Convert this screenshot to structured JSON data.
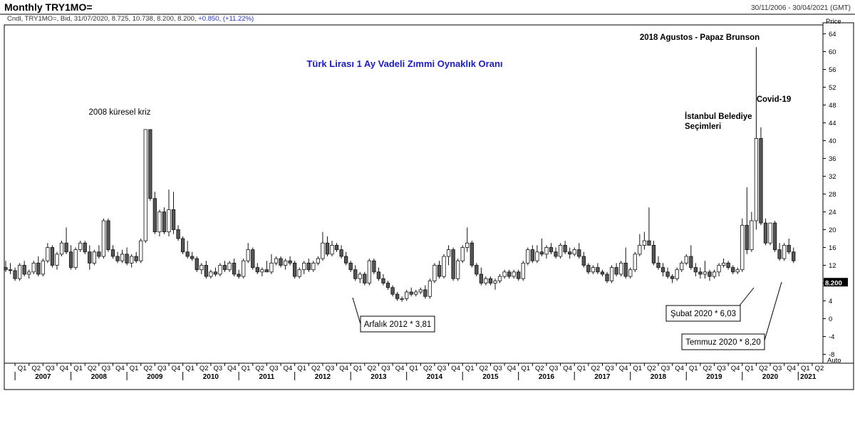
{
  "header": {
    "title": "Monthly TRY1MO=",
    "date_range": "30/11/2006 - 30/04/2021 (GMT)",
    "info_prefix": "Cndl, TRY1MO=, Bid, 31/07/2020, 8.725, 10.738, 8.200, 8.200,",
    "info_change": "+0.850, (+11.22%)"
  },
  "chart_data": {
    "type": "candlestick",
    "title": "Türk Lirası 1 Ay Vadeli Zımmi Oynaklık Oranı",
    "ylabel": "Price",
    "ylim": [
      -10,
      66
    ],
    "y_ticks": [
      64,
      60,
      56,
      52,
      48,
      44,
      40,
      36,
      32,
      28,
      24,
      20,
      16,
      12,
      8,
      4,
      0,
      -4,
      -8
    ],
    "last_price_label": "8.200",
    "auto_label": "Auto",
    "x_range": [
      "2006-11",
      "2021-06"
    ],
    "years": [
      "2007",
      "2008",
      "2009",
      "2010",
      "2011",
      "2012",
      "2013",
      "2014",
      "2015",
      "2016",
      "2017",
      "2018",
      "2019",
      "2020",
      "2021"
    ],
    "quarter_labels": [
      "Q1",
      "Q2",
      "Q3",
      "Q4"
    ],
    "extra_quarters": [
      "Q1",
      "Q2"
    ],
    "candles": [
      [
        "2006-11",
        11.5,
        13.0,
        10.5,
        11.0
      ],
      [
        "2006-12",
        11.0,
        12.5,
        10.0,
        10.8
      ],
      [
        "2007-01",
        10.8,
        11.5,
        8.5,
        9.0
      ],
      [
        "2007-02",
        9.0,
        12.5,
        8.5,
        12.0
      ],
      [
        "2007-03",
        12.0,
        13.0,
        9.5,
        10.0
      ],
      [
        "2007-04",
        10.0,
        11.0,
        9.0,
        10.5
      ],
      [
        "2007-05",
        10.5,
        13.0,
        10.0,
        12.5
      ],
      [
        "2007-06",
        12.5,
        14.0,
        9.5,
        10.0
      ],
      [
        "2007-07",
        10.0,
        13.5,
        9.5,
        13.0
      ],
      [
        "2007-08",
        13.0,
        17.0,
        12.5,
        16.0
      ],
      [
        "2007-09",
        16.0,
        16.5,
        11.5,
        12.0
      ],
      [
        "2007-10",
        12.0,
        15.0,
        11.0,
        14.5
      ],
      [
        "2007-11",
        14.5,
        17.5,
        14.0,
        17.0
      ],
      [
        "2007-12",
        17.0,
        20.5,
        14.5,
        15.0
      ],
      [
        "2008-01",
        15.0,
        16.5,
        11.0,
        11.5
      ],
      [
        "2008-02",
        11.5,
        16.0,
        11.0,
        15.5
      ],
      [
        "2008-03",
        15.5,
        17.5,
        15.0,
        17.0
      ],
      [
        "2008-04",
        17.0,
        17.5,
        14.5,
        15.0
      ],
      [
        "2008-05",
        15.0,
        16.5,
        11.0,
        12.5
      ],
      [
        "2008-06",
        12.5,
        15.5,
        12.0,
        15.0
      ],
      [
        "2008-07",
        15.0,
        16.5,
        13.5,
        14.0
      ],
      [
        "2008-08",
        14.0,
        22.5,
        13.5,
        22.0
      ],
      [
        "2008-09",
        22.0,
        22.5,
        15.0,
        15.5
      ],
      [
        "2008-10",
        15.5,
        16.5,
        13.5,
        14.0
      ],
      [
        "2008-11",
        14.0,
        15.0,
        12.5,
        13.0
      ],
      [
        "2008-12",
        13.0,
        15.5,
        12.5,
        14.5
      ],
      [
        "2009-01",
        14.5,
        16.0,
        12.0,
        12.5
      ],
      [
        "2009-02",
        12.5,
        14.5,
        11.5,
        14.0
      ],
      [
        "2009-03",
        14.0,
        15.0,
        12.5,
        13.0
      ],
      [
        "2009-04",
        13.0,
        18.0,
        12.5,
        17.5
      ],
      [
        "2009-05",
        17.5,
        42.5,
        17.0,
        42.5
      ],
      [
        "2009-06",
        42.5,
        42.5,
        26.5,
        27.0
      ],
      [
        "2009-07",
        27.0,
        28.5,
        19.0,
        19.5
      ],
      [
        "2009-08",
        19.5,
        24.5,
        18.5,
        24.0
      ],
      [
        "2009-09",
        24.0,
        25.0,
        19.0,
        19.5
      ],
      [
        "2009-10",
        19.5,
        29.0,
        18.5,
        24.5
      ],
      [
        "2009-11",
        24.5,
        28.5,
        19.0,
        20.0
      ],
      [
        "2009-12",
        20.0,
        21.0,
        17.5,
        18.0
      ],
      [
        "2010-01",
        18.0,
        18.5,
        14.5,
        15.0
      ],
      [
        "2010-02",
        15.0,
        17.5,
        13.5,
        14.0
      ],
      [
        "2010-03",
        14.0,
        15.0,
        13.0,
        13.5
      ],
      [
        "2010-04",
        13.5,
        14.0,
        10.5,
        11.0
      ],
      [
        "2010-05",
        11.0,
        12.5,
        10.0,
        12.0
      ],
      [
        "2010-06",
        12.0,
        13.0,
        9.0,
        9.5
      ],
      [
        "2010-07",
        9.5,
        11.0,
        9.0,
        10.5
      ],
      [
        "2010-08",
        10.5,
        11.5,
        9.5,
        10.0
      ],
      [
        "2010-09",
        10.0,
        12.5,
        9.5,
        12.0
      ],
      [
        "2010-10",
        12.0,
        13.0,
        10.5,
        11.0
      ],
      [
        "2010-11",
        11.0,
        13.0,
        10.5,
        12.5
      ],
      [
        "2010-12",
        12.5,
        13.5,
        9.5,
        10.0
      ],
      [
        "2011-01",
        10.0,
        11.0,
        9.0,
        9.5
      ],
      [
        "2011-02",
        9.5,
        13.5,
        9.0,
        13.0
      ],
      [
        "2011-03",
        13.0,
        17.0,
        12.5,
        15.5
      ],
      [
        "2011-04",
        15.5,
        16.0,
        11.0,
        11.5
      ],
      [
        "2011-05",
        11.5,
        12.5,
        10.0,
        10.5
      ],
      [
        "2011-06",
        10.5,
        11.5,
        9.5,
        11.0
      ],
      [
        "2011-07",
        11.0,
        13.0,
        10.5,
        10.5
      ],
      [
        "2011-08",
        10.5,
        14.5,
        10.0,
        12.5
      ],
      [
        "2011-09",
        12.5,
        14.0,
        12.0,
        13.5
      ],
      [
        "2011-10",
        13.5,
        14.0,
        11.5,
        12.0
      ],
      [
        "2011-11",
        12.0,
        13.5,
        11.0,
        13.0
      ],
      [
        "2011-12",
        13.0,
        14.0,
        12.0,
        12.5
      ],
      [
        "2012-01",
        12.5,
        13.0,
        9.0,
        9.5
      ],
      [
        "2012-02",
        9.5,
        11.5,
        9.0,
        11.0
      ],
      [
        "2012-03",
        11.0,
        13.0,
        10.0,
        12.5
      ],
      [
        "2012-04",
        12.5,
        13.5,
        10.5,
        11.0
      ],
      [
        "2012-05",
        11.0,
        13.0,
        10.5,
        12.5
      ],
      [
        "2012-06",
        12.5,
        14.0,
        12.0,
        13.5
      ],
      [
        "2012-07",
        13.5,
        19.5,
        13.0,
        17.0
      ],
      [
        "2012-08",
        17.0,
        18.5,
        14.0,
        14.5
      ],
      [
        "2012-09",
        14.5,
        17.5,
        14.0,
        16.5
      ],
      [
        "2012-10",
        16.5,
        17.0,
        15.0,
        15.5
      ],
      [
        "2012-11",
        15.5,
        16.5,
        13.5,
        14.0
      ],
      [
        "2012-12",
        14.0,
        15.0,
        12.0,
        12.5
      ],
      [
        "2013-01",
        12.5,
        13.0,
        10.5,
        11.0
      ],
      [
        "2013-02",
        11.0,
        12.0,
        8.5,
        9.0
      ],
      [
        "2013-03",
        9.0,
        10.5,
        8.0,
        10.0
      ],
      [
        "2013-04",
        10.0,
        10.5,
        7.5,
        8.0
      ],
      [
        "2013-05",
        8.0,
        13.5,
        7.5,
        13.0
      ],
      [
        "2013-06",
        13.0,
        13.5,
        10.0,
        10.5
      ],
      [
        "2013-07",
        10.5,
        11.5,
        8.5,
        9.0
      ],
      [
        "2013-08",
        9.0,
        10.0,
        7.5,
        8.0
      ],
      [
        "2013-09",
        8.0,
        8.5,
        6.5,
        7.0
      ],
      [
        "2013-10",
        7.0,
        7.5,
        5.0,
        5.5
      ],
      [
        "2013-11",
        5.5,
        6.0,
        4.0,
        4.5
      ],
      [
        "2013-12",
        4.5,
        5.0,
        3.8,
        4.5
      ],
      [
        "2014-01",
        4.5,
        6.5,
        4.0,
        6.0
      ],
      [
        "2014-02",
        6.0,
        7.0,
        5.0,
        5.5
      ],
      [
        "2014-03",
        5.5,
        6.5,
        5.0,
        6.0
      ],
      [
        "2014-04",
        6.0,
        7.0,
        5.5,
        6.5
      ],
      [
        "2014-05",
        6.5,
        7.5,
        4.5,
        5.0
      ],
      [
        "2014-06",
        5.0,
        9.0,
        4.5,
        8.5
      ],
      [
        "2014-07",
        8.5,
        12.5,
        8.0,
        12.0
      ],
      [
        "2014-08",
        12.0,
        13.0,
        9.0,
        9.5
      ],
      [
        "2014-09",
        9.5,
        14.5,
        9.0,
        14.0
      ],
      [
        "2014-10",
        14.0,
        16.5,
        12.0,
        15.5
      ],
      [
        "2014-11",
        15.5,
        16.0,
        8.5,
        9.0
      ],
      [
        "2014-12",
        9.0,
        13.5,
        8.5,
        13.0
      ],
      [
        "2015-01",
        13.0,
        16.5,
        12.5,
        16.0
      ],
      [
        "2015-02",
        16.0,
        20.5,
        15.0,
        17.0
      ],
      [
        "2015-03",
        17.0,
        17.5,
        11.5,
        12.0
      ],
      [
        "2015-04",
        12.0,
        12.5,
        9.5,
        10.0
      ],
      [
        "2015-05",
        10.0,
        11.5,
        7.5,
        8.0
      ],
      [
        "2015-06",
        8.0,
        9.5,
        7.5,
        9.0
      ],
      [
        "2015-07",
        9.0,
        9.5,
        7.5,
        8.0
      ],
      [
        "2015-08",
        8.0,
        9.0,
        6.5,
        8.5
      ],
      [
        "2015-09",
        8.5,
        10.0,
        8.0,
        9.5
      ],
      [
        "2015-10",
        9.5,
        11.0,
        9.0,
        10.5
      ],
      [
        "2015-11",
        10.5,
        11.0,
        9.0,
        9.5
      ],
      [
        "2015-12",
        9.5,
        11.0,
        9.0,
        10.5
      ],
      [
        "2016-01",
        10.5,
        11.0,
        8.5,
        9.0
      ],
      [
        "2016-02",
        9.0,
        13.0,
        8.5,
        12.5
      ],
      [
        "2016-03",
        12.5,
        16.0,
        12.0,
        15.5
      ],
      [
        "2016-04",
        15.5,
        16.5,
        12.5,
        13.0
      ],
      [
        "2016-05",
        13.0,
        16.5,
        12.5,
        15.0
      ],
      [
        "2016-06",
        15.0,
        18.0,
        14.0,
        14.5
      ],
      [
        "2016-07",
        14.5,
        16.5,
        13.5,
        16.0
      ],
      [
        "2016-08",
        16.0,
        17.0,
        14.5,
        15.0
      ],
      [
        "2016-09",
        15.0,
        16.0,
        13.5,
        14.0
      ],
      [
        "2016-10",
        14.0,
        17.0,
        13.5,
        16.5
      ],
      [
        "2016-11",
        16.5,
        17.5,
        14.5,
        15.0
      ],
      [
        "2016-12",
        15.0,
        16.0,
        13.5,
        14.5
      ],
      [
        "2017-01",
        14.5,
        16.0,
        14.0,
        15.5
      ],
      [
        "2017-02",
        15.5,
        17.0,
        13.5,
        14.0
      ],
      [
        "2017-03",
        14.0,
        15.0,
        11.5,
        12.0
      ],
      [
        "2017-04",
        12.0,
        12.5,
        10.0,
        10.5
      ],
      [
        "2017-05",
        10.5,
        12.0,
        10.0,
        11.5
      ],
      [
        "2017-06",
        11.5,
        12.5,
        10.0,
        10.5
      ],
      [
        "2017-07",
        10.5,
        11.0,
        9.5,
        10.0
      ],
      [
        "2017-08",
        10.0,
        10.5,
        8.0,
        8.5
      ],
      [
        "2017-09",
        8.5,
        12.0,
        8.0,
        11.5
      ],
      [
        "2017-10",
        11.5,
        12.5,
        9.5,
        10.0
      ],
      [
        "2017-11",
        10.0,
        13.0,
        9.5,
        12.5
      ],
      [
        "2017-12",
        12.5,
        16.0,
        9.0,
        9.5
      ],
      [
        "2018-01",
        9.5,
        11.5,
        9.0,
        11.0
      ],
      [
        "2018-02",
        11.0,
        15.0,
        10.5,
        14.5
      ],
      [
        "2018-03",
        14.5,
        19.0,
        14.0,
        16.5
      ],
      [
        "2018-04",
        16.5,
        19.5,
        15.5,
        17.5
      ],
      [
        "2018-05",
        17.5,
        25.0,
        16.5,
        16.5
      ],
      [
        "2018-06",
        16.5,
        17.5,
        12.0,
        12.5
      ],
      [
        "2018-07",
        12.5,
        14.0,
        11.0,
        11.5
      ],
      [
        "2018-08",
        11.5,
        12.5,
        9.5,
        10.5
      ],
      [
        "2018-09",
        10.5,
        11.5,
        9.0,
        9.5
      ],
      [
        "2018-10",
        9.5,
        10.0,
        8.0,
        9.0
      ],
      [
        "2018-11",
        9.0,
        11.5,
        8.5,
        11.0
      ],
      [
        "2018-12",
        11.0,
        13.0,
        10.5,
        12.5
      ],
      [
        "2019-01",
        12.5,
        14.5,
        12.0,
        14.0
      ],
      [
        "2019-02",
        14.0,
        16.5,
        11.0,
        11.5
      ],
      [
        "2019-03",
        11.5,
        12.5,
        9.5,
        10.5
      ],
      [
        "2019-04",
        10.5,
        11.5,
        9.0,
        10.0
      ],
      [
        "2019-05",
        10.0,
        13.0,
        9.0,
        10.5
      ],
      [
        "2019-06",
        10.5,
        11.0,
        8.5,
        9.5
      ],
      [
        "2019-07",
        9.5,
        11.0,
        9.0,
        10.5
      ],
      [
        "2019-08",
        10.5,
        12.5,
        9.5,
        12.0
      ],
      [
        "2019-09",
        12.0,
        13.5,
        11.5,
        12.5
      ],
      [
        "2019-10",
        12.5,
        13.0,
        11.0,
        11.5
      ],
      [
        "2019-11",
        11.5,
        12.0,
        10.0,
        10.5
      ],
      [
        "2019-12",
        10.5,
        11.5,
        10.0,
        11.0
      ],
      [
        "2020-01",
        11.0,
        22.5,
        10.5,
        21.0
      ],
      [
        "2020-02",
        21.0,
        29.5,
        14.5,
        15.5
      ],
      [
        "2020-03",
        15.5,
        24.0,
        15.0,
        22.0
      ],
      [
        "2020-04",
        22.0,
        61.0,
        20.0,
        40.5
      ],
      [
        "2020-05",
        40.5,
        43.0,
        21.0,
        21.5
      ],
      [
        "2020-06",
        21.5,
        22.5,
        16.5,
        17.0
      ],
      [
        "2020-07",
        17.0,
        21.5,
        16.5,
        21.5
      ],
      [
        "2020-08",
        21.5,
        22.0,
        15.0,
        15.5
      ],
      [
        "2020-09",
        15.5,
        17.0,
        13.0,
        13.5
      ],
      [
        "2020-10",
        13.5,
        17.0,
        13.0,
        16.5
      ],
      [
        "2020-11",
        16.5,
        18.0,
        14.5,
        15.0
      ],
      [
        "2020-12",
        15.0,
        16.0,
        12.5,
        13.0
      ]
    ],
    "annotations": [
      {
        "text": "2008 küresel kriz"
      },
      {
        "text": "2018 Agustos - Papaz Brunson"
      },
      {
        "text_lines": [
          "İstanbul Belediye",
          "Seçimleri"
        ]
      },
      {
        "text": "Covid-19"
      }
    ],
    "callouts": [
      {
        "text": "Arfalık 2012 * 3,81"
      },
      {
        "text": "Şubat 2020 * 6,03"
      },
      {
        "text": "Temmuz 2020 * 8,20"
      }
    ]
  }
}
